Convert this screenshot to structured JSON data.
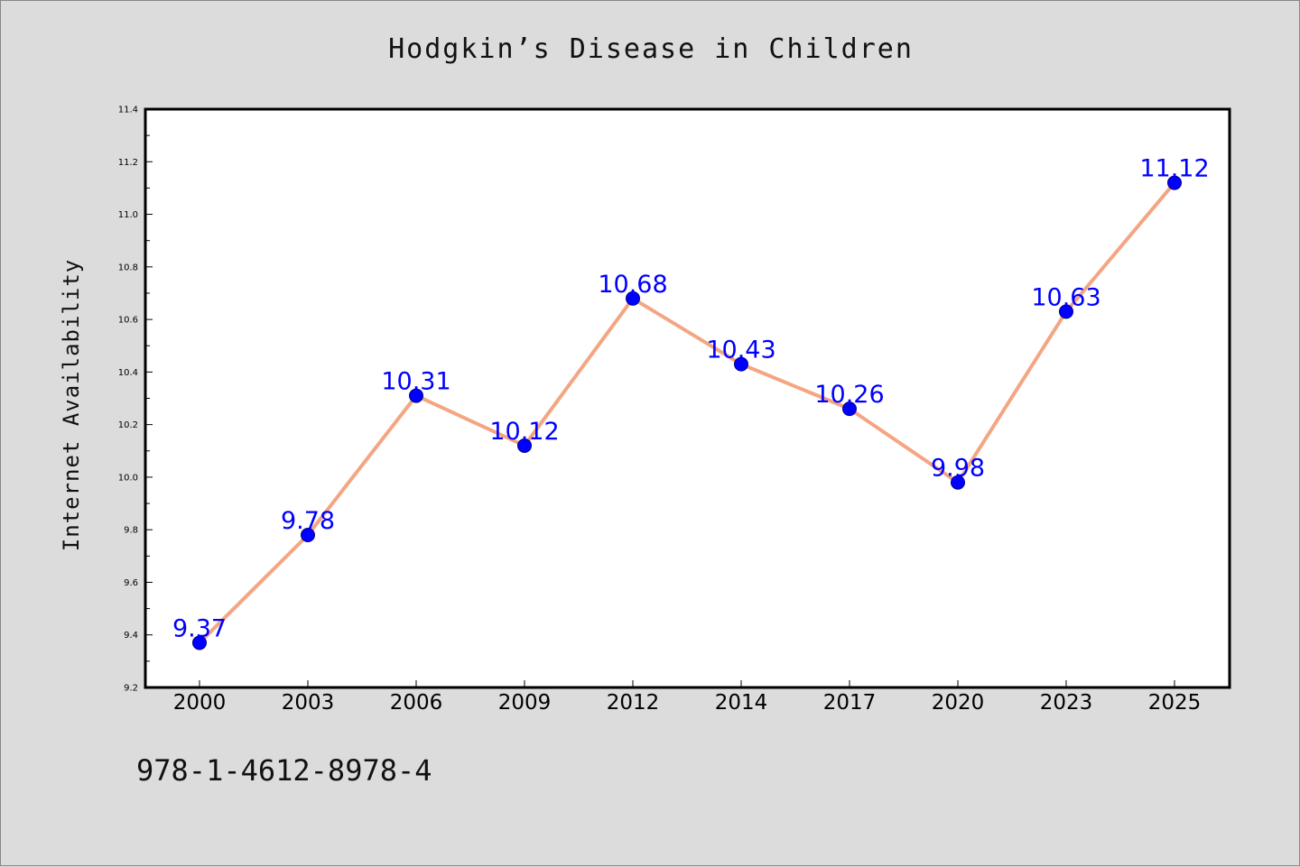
{
  "chart_data": {
    "type": "line",
    "title": "Hodgkin’s Disease in Children",
    "xlabel": "",
    "ylabel": "Internet Availability",
    "categories": [
      "2000",
      "2003",
      "2006",
      "2009",
      "2012",
      "2014",
      "2017",
      "2020",
      "2023",
      "2025"
    ],
    "series": [
      {
        "values": [
          9.37,
          9.78,
          10.31,
          10.12,
          10.68,
          10.43,
          10.26,
          9.98,
          10.63,
          11.12
        ],
        "data_labels": [
          "9.37",
          "9.78",
          "10.31",
          "10.12",
          "10.68",
          "10.43",
          "10.26",
          "9.98",
          "10.63",
          "11.12"
        ],
        "line_color": "#f4a582",
        "marker_color": "#0000ff",
        "label_color": "#0000ff"
      }
    ],
    "ylim": [
      9.2,
      11.4
    ],
    "yticks": [
      "9.2",
      "9.4",
      "9.6",
      "9.8",
      "10.0",
      "10.2",
      "10.4",
      "10.6",
      "10.8",
      "11.0",
      "11.2",
      "11.4"
    ],
    "grid": false,
    "legend": "none"
  },
  "footer": {
    "code": "978-1-4612-8978-4"
  },
  "colors": {
    "background": "#dcdcdc",
    "plot_background": "#ffffff",
    "axis": "#000000"
  }
}
